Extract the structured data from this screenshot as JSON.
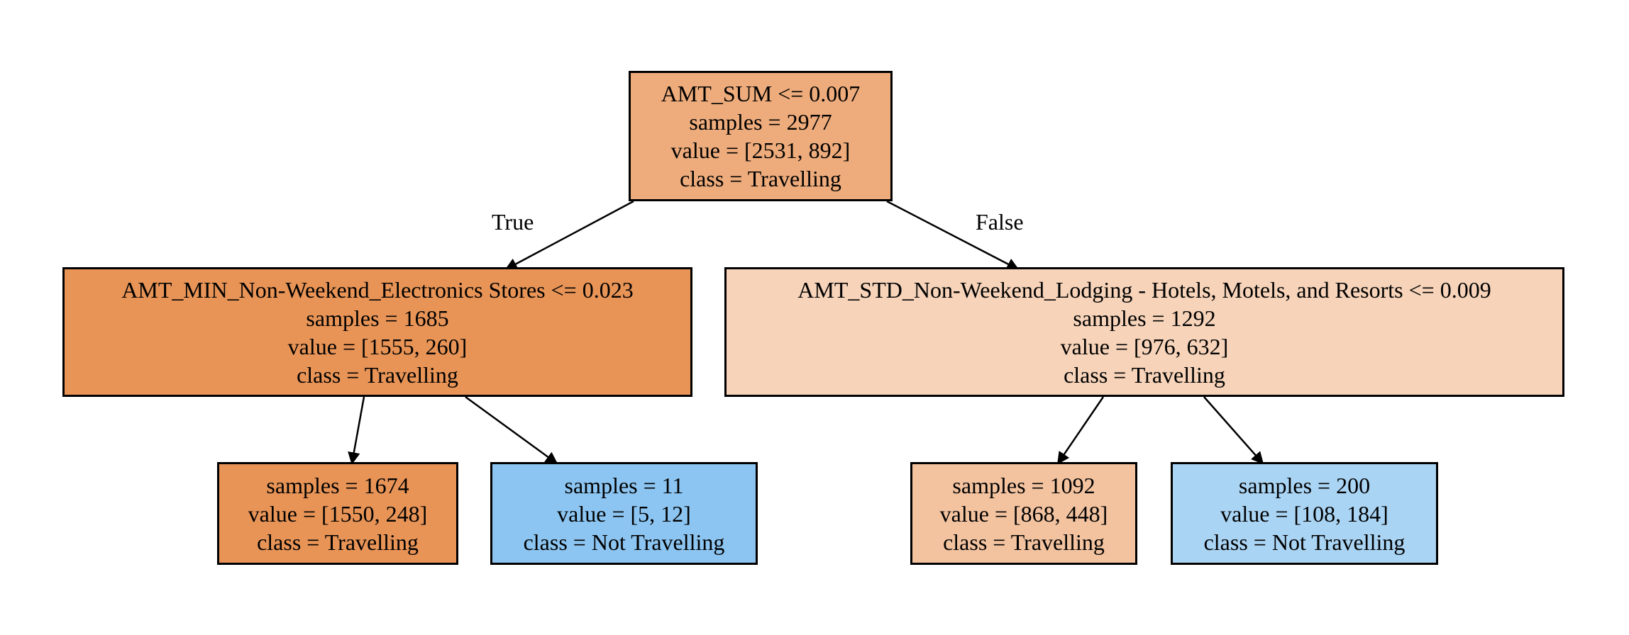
{
  "colors": {
    "travelling_dark": "#e89457",
    "travelling_medium": "#eeac7c",
    "travelling_light": "#f6d3b9",
    "travelling_pale": "#f3c3a0",
    "not_travelling_medium": "#8cc5f1",
    "not_travelling_light": "#aad4f4",
    "border": "#000000"
  },
  "nodes": {
    "root": {
      "split": "AMT_SUM <= 0.007",
      "samples": "samples = 2977",
      "value": "value = [2531, 892]",
      "class": "class = Travelling"
    },
    "left": {
      "split": "AMT_MIN_Non-Weekend_Electronics Stores <= 0.023",
      "samples": "samples = 1685",
      "value": "value = [1555, 260]",
      "class": "class = Travelling"
    },
    "right": {
      "split": "AMT_STD_Non-Weekend_Lodging - Hotels, Motels, and Resorts <= 0.009",
      "samples": "samples = 1292",
      "value": "value = [976, 632]",
      "class": "class = Travelling"
    },
    "leaf_ll": {
      "samples": "samples = 1674",
      "value": "value = [1550, 248]",
      "class": "class = Travelling"
    },
    "leaf_lr": {
      "samples": "samples = 11",
      "value": "value = [5, 12]",
      "class": "class = Not Travelling"
    },
    "leaf_rl": {
      "samples": "samples = 1092",
      "value": "value = [868, 448]",
      "class": "class = Travelling"
    },
    "leaf_rr": {
      "samples": "samples = 200",
      "value": "value = [108, 184]",
      "class": "class = Not Travelling"
    }
  },
  "edge_labels": {
    "true_label": "True",
    "false_label": "False"
  }
}
